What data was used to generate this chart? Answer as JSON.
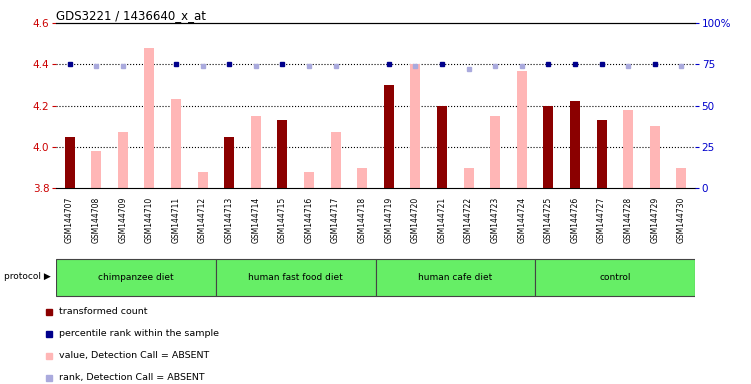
{
  "title": "GDS3221 / 1436640_x_at",
  "samples": [
    "GSM144707",
    "GSM144708",
    "GSM144709",
    "GSM144710",
    "GSM144711",
    "GSM144712",
    "GSM144713",
    "GSM144714",
    "GSM144715",
    "GSM144716",
    "GSM144717",
    "GSM144718",
    "GSM144719",
    "GSM144720",
    "GSM144721",
    "GSM144722",
    "GSM144723",
    "GSM144724",
    "GSM144725",
    "GSM144726",
    "GSM144727",
    "GSM144728",
    "GSM144729",
    "GSM144730"
  ],
  "red_values": [
    4.05,
    null,
    null,
    null,
    null,
    null,
    4.05,
    null,
    4.13,
    null,
    null,
    null,
    4.3,
    null,
    4.2,
    null,
    null,
    null,
    4.2,
    4.22,
    4.13,
    null,
    null,
    null
  ],
  "pink_values": [
    null,
    3.98,
    4.07,
    4.48,
    4.23,
    3.88,
    null,
    4.15,
    null,
    3.88,
    4.07,
    3.9,
    null,
    4.4,
    null,
    3.9,
    4.15,
    4.37,
    null,
    null,
    null,
    4.18,
    4.1,
    3.9
  ],
  "blue_dark": [
    75,
    null,
    null,
    null,
    75,
    null,
    75,
    null,
    75,
    null,
    null,
    null,
    75,
    null,
    75,
    null,
    null,
    null,
    75,
    75,
    75,
    null,
    75,
    null
  ],
  "blue_light": [
    null,
    74,
    74,
    null,
    null,
    74,
    null,
    74,
    null,
    74,
    74,
    null,
    null,
    74,
    null,
    72,
    74,
    74,
    null,
    null,
    null,
    74,
    null,
    74
  ],
  "ylim_left": [
    3.8,
    4.6
  ],
  "ylim_right": [
    0,
    100
  ],
  "yticks_left": [
    3.8,
    4.0,
    4.2,
    4.4,
    4.6
  ],
  "yticks_right": [
    0,
    25,
    50,
    75,
    100
  ],
  "left_axis_color": "#cc0000",
  "right_axis_color": "#0000cc",
  "dark_red": "#8b0000",
  "pink": "#ffb6b6",
  "dark_blue": "#00008b",
  "light_blue": "#aaaadd",
  "groups": [
    {
      "label": "chimpanzee diet",
      "start": 0,
      "end": 5
    },
    {
      "label": "human fast food diet",
      "start": 6,
      "end": 11
    },
    {
      "label": "human cafe diet",
      "start": 12,
      "end": 17
    },
    {
      "label": "control",
      "start": 18,
      "end": 23
    }
  ],
  "group_color": "#66ee66",
  "xtick_bg": "#d8d8d8",
  "legend_items": [
    {
      "color": "#8b0000",
      "label": "transformed count"
    },
    {
      "color": "#00008b",
      "label": "percentile rank within the sample"
    },
    {
      "color": "#ffb6b6",
      "label": "value, Detection Call = ABSENT"
    },
    {
      "color": "#aaaadd",
      "label": "rank, Detection Call = ABSENT"
    }
  ]
}
